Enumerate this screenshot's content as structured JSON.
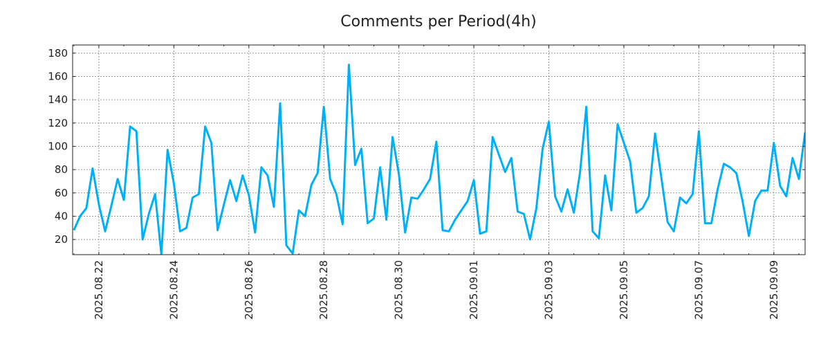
{
  "chart_data": {
    "type": "line",
    "title": "Comments per Period(4h)",
    "xlabel": "",
    "ylabel": "",
    "x_start": "2025-08-21 08:00",
    "interval_hours": 4,
    "series": [
      {
        "name": "comments",
        "color": "#00b0f6",
        "values": [
          28,
          40,
          47,
          81,
          50,
          27,
          49,
          72,
          54,
          117,
          113,
          20,
          42,
          59,
          7,
          97,
          68,
          27,
          30,
          56,
          59,
          117,
          103,
          28,
          50,
          71,
          53,
          75,
          58,
          26,
          82,
          75,
          48,
          137,
          15,
          8,
          45,
          40,
          67,
          77,
          134,
          72,
          59,
          33,
          170,
          84,
          98,
          34,
          38,
          82,
          37,
          108,
          76,
          26,
          56,
          55,
          63,
          72,
          104,
          28,
          27,
          37,
          45,
          53,
          71,
          25,
          27,
          108,
          93,
          78,
          90,
          44,
          42,
          20,
          47,
          98,
          121,
          57,
          44,
          63,
          43,
          78,
          134,
          27,
          21,
          75,
          45,
          119,
          103,
          87,
          43,
          47,
          57,
          111,
          73,
          35,
          27,
          56,
          51,
          59,
          113,
          34,
          34,
          63,
          85,
          82,
          77,
          53,
          23,
          53,
          62,
          62,
          103,
          66,
          57,
          90,
          72,
          112
        ]
      }
    ],
    "x_ticks": [
      {
        "label": "2025.08.22",
        "index": 4
      },
      {
        "label": "2025.08.24",
        "index": 16
      },
      {
        "label": "2025.08.26",
        "index": 28
      },
      {
        "label": "2025.08.28",
        "index": 40
      },
      {
        "label": "2025.08.30",
        "index": 52
      },
      {
        "label": "2025.09.01",
        "index": 64
      },
      {
        "label": "2025.09.03",
        "index": 76
      },
      {
        "label": "2025.09.05",
        "index": 88
      },
      {
        "label": "2025.09.07",
        "index": 100
      },
      {
        "label": "2025.09.09",
        "index": 112
      }
    ],
    "y_ticks": [
      20,
      40,
      60,
      80,
      100,
      120,
      140,
      160,
      180
    ],
    "xlim": [
      -0.2,
      117
    ],
    "ylim": [
      7,
      187
    ],
    "grid": true,
    "legend": "none"
  }
}
